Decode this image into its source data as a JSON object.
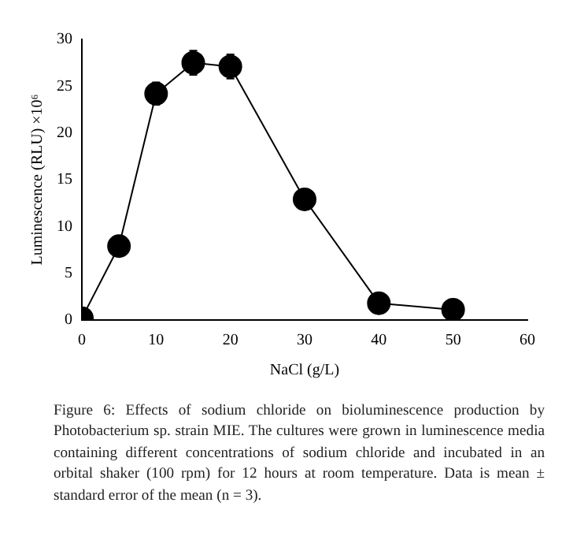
{
  "chart_data": {
    "type": "line",
    "xlabel": "NaCl (g/L)",
    "ylabel": "Luminescence (RLU) ×10⁶",
    "x": [
      0,
      5,
      10,
      15,
      20,
      30,
      40,
      50
    ],
    "series": [
      {
        "color": "#000000",
        "values": [
          0.2,
          7.9,
          24.2,
          27.5,
          27.1,
          12.9,
          1.8,
          1.1
        ],
        "errors": [
          null,
          null,
          1.2,
          1.3,
          1.3,
          null,
          null,
          null
        ]
      }
    ],
    "xlim": [
      0,
      60
    ],
    "xticks": [
      0,
      10,
      20,
      30,
      40,
      50,
      60
    ],
    "ylim": [
      0,
      30
    ],
    "yticks": [
      0,
      5,
      10,
      15,
      20,
      25,
      30
    ],
    "grid": false,
    "legend": false,
    "marker": "circle",
    "line_style": "solid",
    "annotations": [
      "Figure 6: Effects of sodium chloride on bioluminescence production by Photobacterium sp. strain MIE. The cultures were grown in luminescence media containing different concentrations of sodium chloride and incubated in an orbital shaker (100 rpm) for 12 hours at room temperature. Data is mean ± standard error of the mean (n = 3)."
    ]
  }
}
